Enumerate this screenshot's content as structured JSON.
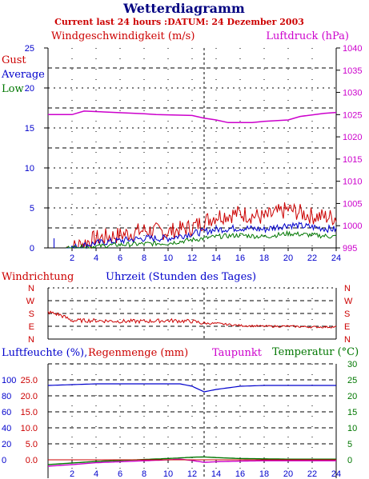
{
  "header": {
    "title": "Wetterdiagramm",
    "subtitle": "Current last 24 hours :DATUM: 24 Dezember 2003"
  },
  "colors": {
    "red": "#cc0000",
    "blue": "#0000cc",
    "green": "#007700",
    "magenta": "#cc00cc",
    "navy": "#000080",
    "axis": "#000000"
  },
  "chart_data": [
    {
      "type": "line",
      "labels": {
        "left": "Windgeschwindigkeit (m/s)",
        "right": "Luftdruck (hPa)",
        "legend": [
          "Gust",
          "Average",
          "Low"
        ]
      },
      "x": [
        0,
        2,
        4,
        6,
        8,
        10,
        12,
        14,
        16,
        18,
        20,
        22,
        24
      ],
      "xlabels": [
        "2",
        "4",
        "6",
        "8",
        "10",
        "12",
        "14",
        "16",
        "18",
        "20",
        "22",
        "24"
      ],
      "xlim": [
        0,
        24
      ],
      "ylim_left": [
        0,
        25
      ],
      "yticks_left": [
        "0",
        "5",
        "10",
        "15",
        "20",
        "25"
      ],
      "ylim_right": [
        995,
        1040
      ],
      "yticks_right": [
        "995",
        "1000",
        "1005",
        "1010",
        "1015",
        "1020",
        "1025",
        "1030",
        "1035",
        "1040"
      ],
      "series": [
        {
          "name": "Gust",
          "color": "#cc0000",
          "values": [
            0,
            0,
            1.2,
            1.6,
            2.2,
            2.0,
            2.6,
            4.0,
            4.3,
            3.8,
            4.8,
            4.0,
            3.8
          ]
        },
        {
          "name": "Average",
          "color": "#0000cc",
          "values": [
            0,
            0,
            0.6,
            0.9,
            1.2,
            1.2,
            1.8,
            2.3,
            2.5,
            2.3,
            2.9,
            2.6,
            2.3
          ]
        },
        {
          "name": "Low",
          "color": "#007700",
          "values": [
            0,
            0,
            0.2,
            0.4,
            0.5,
            0.6,
            1.0,
            1.4,
            1.6,
            1.4,
            1.8,
            1.6,
            1.4
          ]
        },
        {
          "name": "Luftdruck",
          "color": "#cc00cc",
          "x": [
            0,
            2,
            3,
            8,
            9,
            12,
            13,
            14,
            15,
            17,
            18,
            20,
            21,
            23,
            24
          ],
          "values": [
            1025.0,
            1025.0,
            1025.8,
            1025.2,
            1025.0,
            1024.8,
            1024.2,
            1023.8,
            1023.2,
            1023.2,
            1023.5,
            1023.8,
            1024.6,
            1025.3,
            1025.5
          ]
        }
      ]
    },
    {
      "type": "line",
      "labels": {
        "left": "Windrichtung",
        "center": "Uhrzeit (Stunden des Tages)"
      },
      "yticks": [
        "N",
        "W",
        "S",
        "E",
        "N"
      ],
      "ylim": [
        0,
        360
      ],
      "x": [
        0,
        1,
        2,
        4,
        6,
        8,
        10,
        12,
        13,
        14,
        16,
        18,
        20,
        22,
        24
      ],
      "series": [
        {
          "name": "",
          "color": "#cc0000",
          "values": [
            190,
            170,
            130,
            130,
            125,
            125,
            130,
            125,
            110,
            110,
            95,
            90,
            90,
            85,
            85
          ]
        }
      ]
    },
    {
      "type": "line",
      "labels": {
        "humidity": "Luftfeuchte (%),",
        "rain": "Regenmenge (mm)",
        "dew": "Taupunkt",
        "temp": "Temperatur (°C)"
      },
      "xlabels": [
        "2",
        "4",
        "6",
        "8",
        "10",
        "12",
        "14",
        "16",
        "18",
        "20",
        "22",
        "24"
      ],
      "yticks_humidity": [
        "0",
        "20",
        "40",
        "60",
        "80",
        "100"
      ],
      "yticks_rain": [
        "0.0",
        "5.0",
        "10.0",
        "15.0",
        "20.0",
        "25.0"
      ],
      "yticks_temp": [
        "0",
        "5",
        "10",
        "15",
        "20",
        "25",
        "30"
      ],
      "x": [
        0,
        2,
        4,
        6,
        8,
        10,
        11,
        12,
        13,
        14,
        16,
        18,
        20,
        22,
        24
      ],
      "series": [
        {
          "name": "Luftfeuchte",
          "color": "#0000cc",
          "values": [
            93,
            94,
            95,
            95,
            95,
            95,
            95,
            92,
            85,
            88,
            92,
            93,
            93,
            93,
            93
          ]
        },
        {
          "name": "Temperatur",
          "color": "#007700",
          "values": [
            -1.5,
            -1.0,
            -0.5,
            -0.2,
            0.1,
            0.4,
            0.6,
            0.8,
            0.9,
            0.7,
            0.4,
            0.3,
            0.2,
            0.2,
            0.2
          ]
        },
        {
          "name": "Taupunkt",
          "color": "#cc00cc",
          "values": [
            -2.0,
            -1.5,
            -0.9,
            -0.6,
            -0.3,
            0.0,
            0.2,
            -0.2,
            -0.8,
            -0.6,
            -0.4,
            -0.3,
            -0.3,
            -0.3,
            -0.3
          ]
        },
        {
          "name": "Regenmenge",
          "color": "#cc0000",
          "values": [
            0,
            0,
            0,
            0,
            0,
            0,
            0,
            0,
            0,
            0,
            0,
            0,
            0,
            0,
            0
          ]
        }
      ]
    }
  ]
}
